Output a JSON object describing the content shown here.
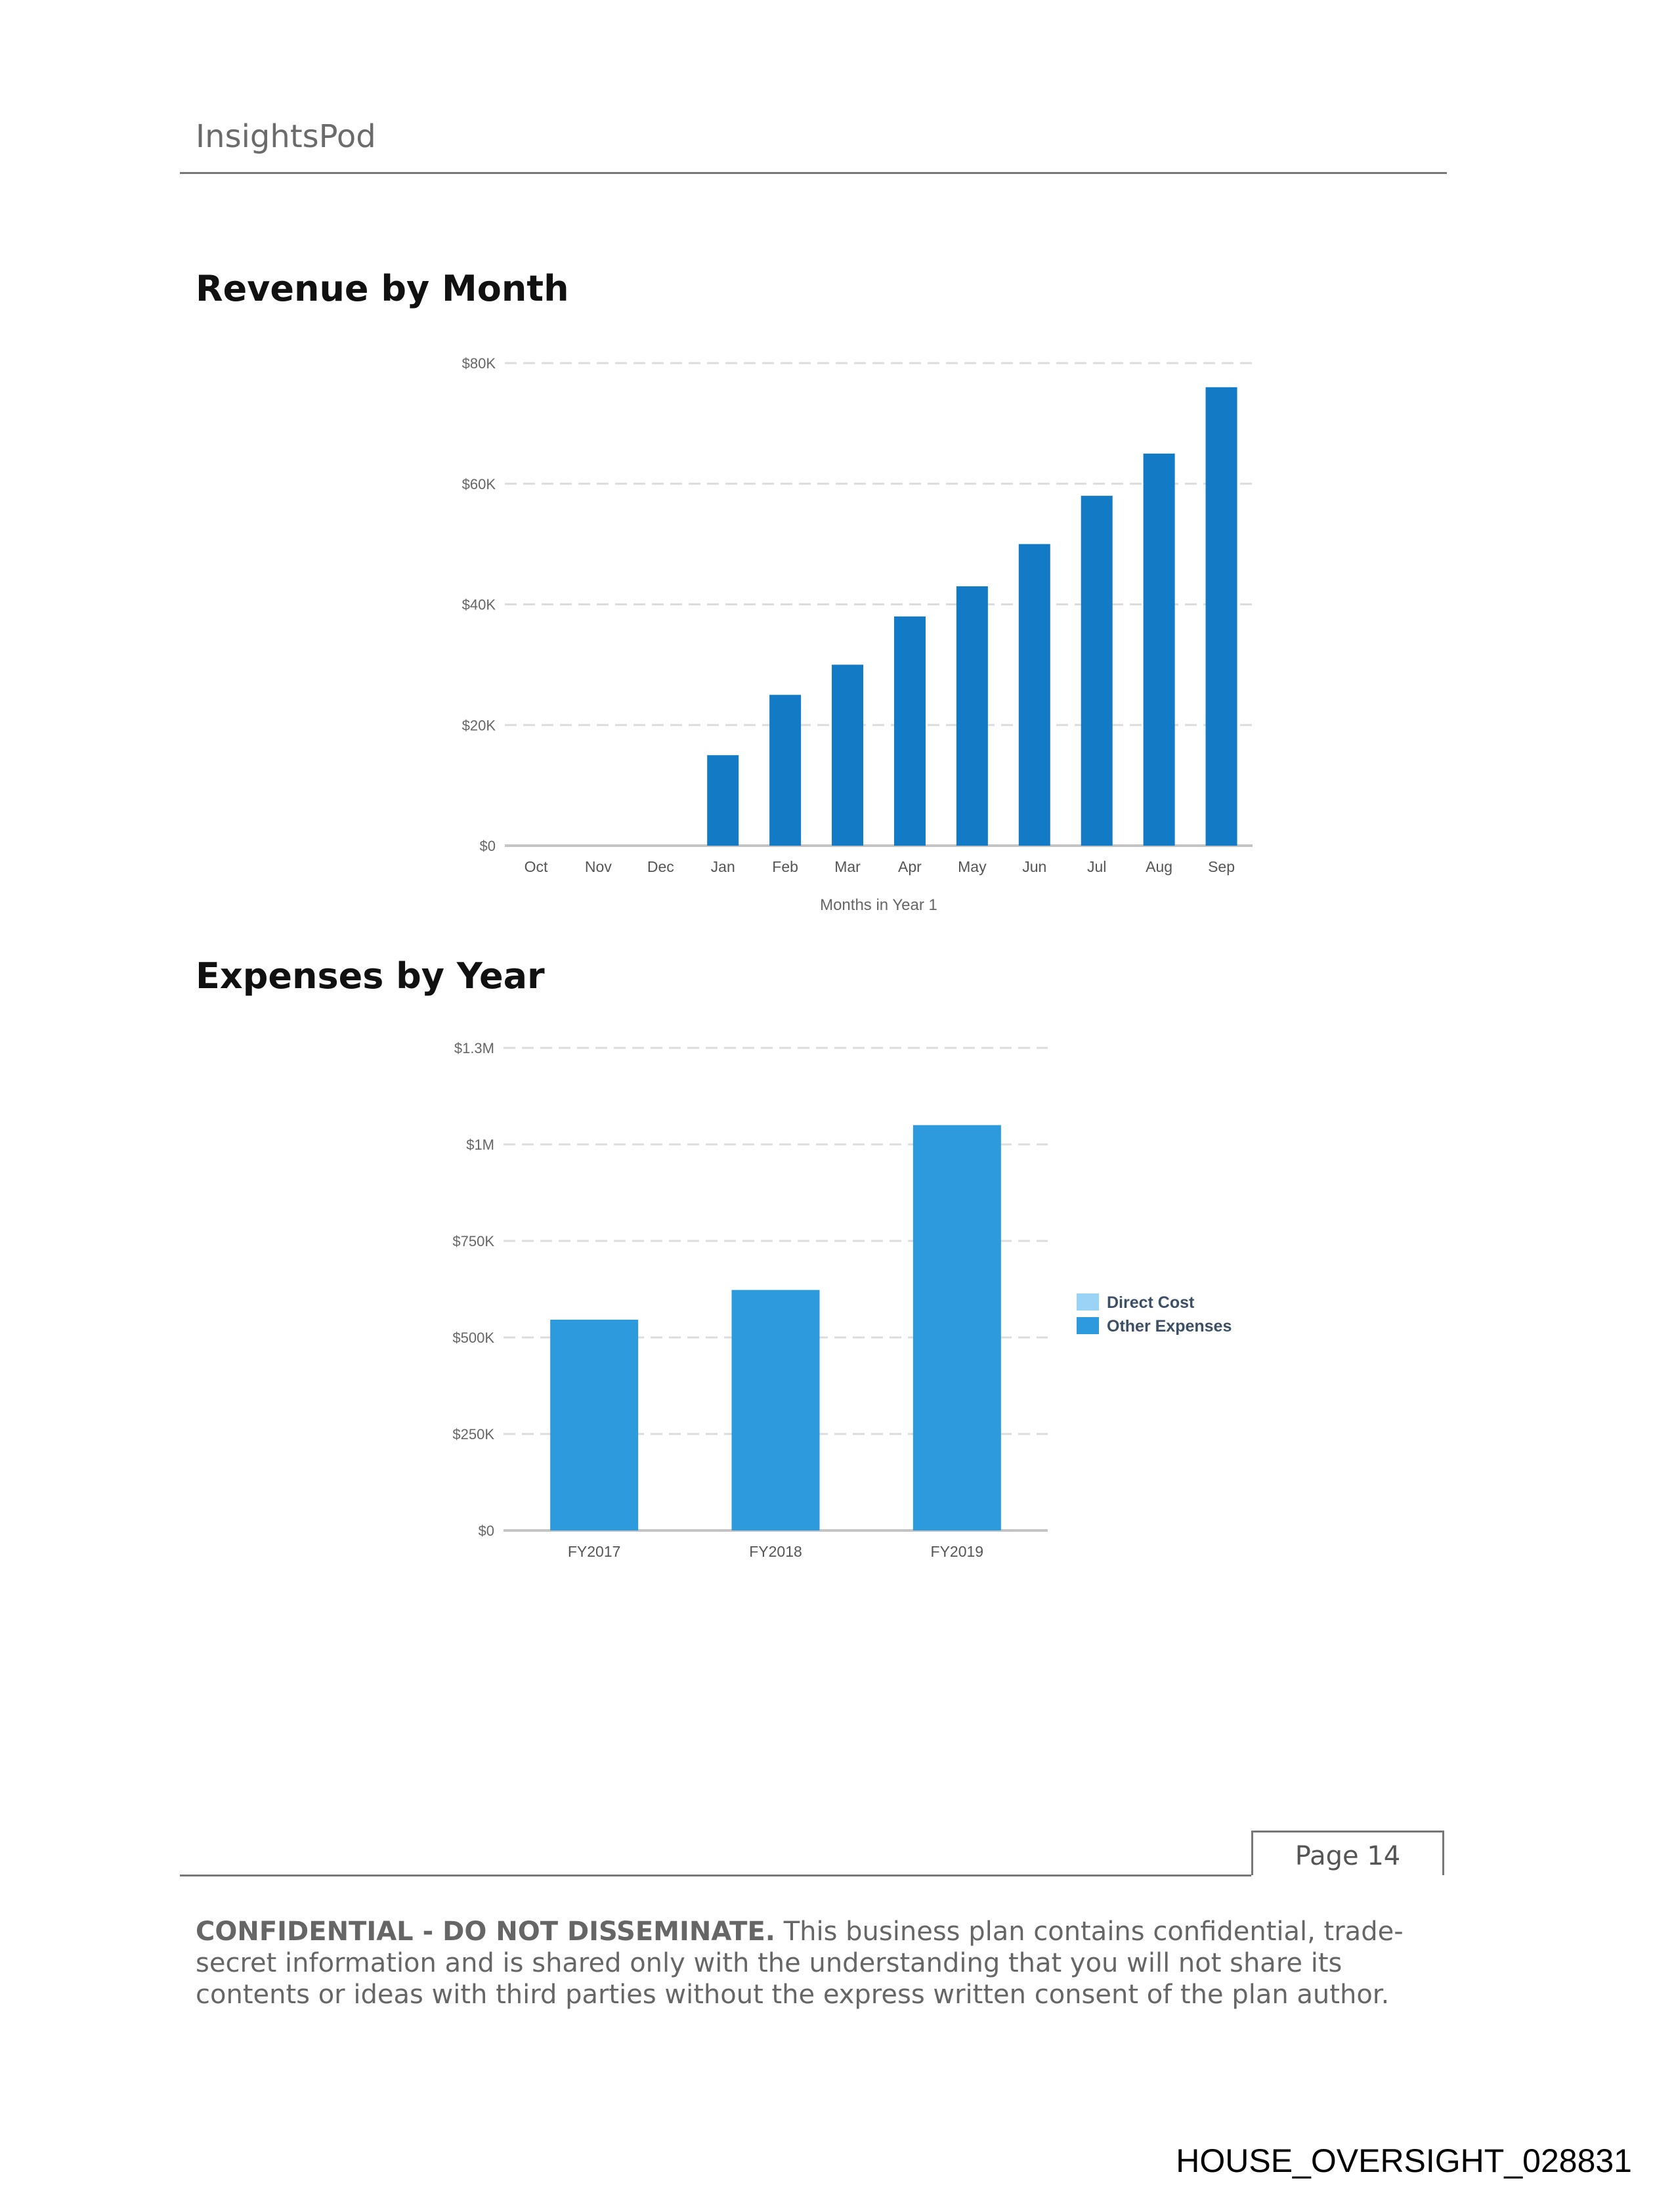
{
  "header": {
    "brand": "InsightsPod"
  },
  "sections": {
    "revenue_title": "Revenue by Month",
    "expenses_title": "Expenses by Year"
  },
  "chart_data": [
    {
      "type": "bar",
      "title": "Revenue by Month",
      "xlabel": "Months in Year 1",
      "ylabel": "",
      "categories": [
        "Oct",
        "Nov",
        "Dec",
        "Jan",
        "Feb",
        "Mar",
        "Apr",
        "May",
        "Jun",
        "Jul",
        "Aug",
        "Sep"
      ],
      "values": [
        0,
        0,
        0,
        15000,
        25000,
        30000,
        38000,
        43000,
        50000,
        58000,
        65000,
        76000
      ],
      "ylim": [
        0,
        80000
      ],
      "yticks": [
        0,
        20000,
        40000,
        60000,
        80000
      ],
      "ytick_labels": [
        "$0",
        "$20K",
        "$40K",
        "$60K",
        "$80K"
      ],
      "grid": true,
      "color": "#137ac6"
    },
    {
      "type": "bar",
      "title": "Expenses by Year",
      "xlabel": "",
      "ylabel": "",
      "categories": [
        "FY2017",
        "FY2018",
        "FY2019"
      ],
      "series": [
        {
          "name": "Direct Cost",
          "values": [
            0,
            0,
            0
          ],
          "color": "#99d4f7"
        },
        {
          "name": "Other Expenses",
          "values": [
            546000,
            623000,
            1050000
          ],
          "color": "#2d9add"
        }
      ],
      "ylim": [
        0,
        1250000
      ],
      "yticks": [
        0,
        250000,
        500000,
        750000,
        1000000,
        1250000
      ],
      "ytick_labels": [
        "$0",
        "$250K",
        "$500K",
        "$750K",
        "$1M",
        "$1.3M"
      ],
      "grid": true,
      "legend": "right"
    }
  ],
  "footer": {
    "page": "Page 14",
    "confidential_lead": "CONFIDENTIAL - DO NOT DISSEMINATE.",
    "confidential_text": " This business plan contains confidential, trade-secret information and is shared only with the understanding that you will not share its contents or ideas with third parties without the express written consent of the plan author.",
    "bates": "HOUSE_OVERSIGHT_028831"
  }
}
